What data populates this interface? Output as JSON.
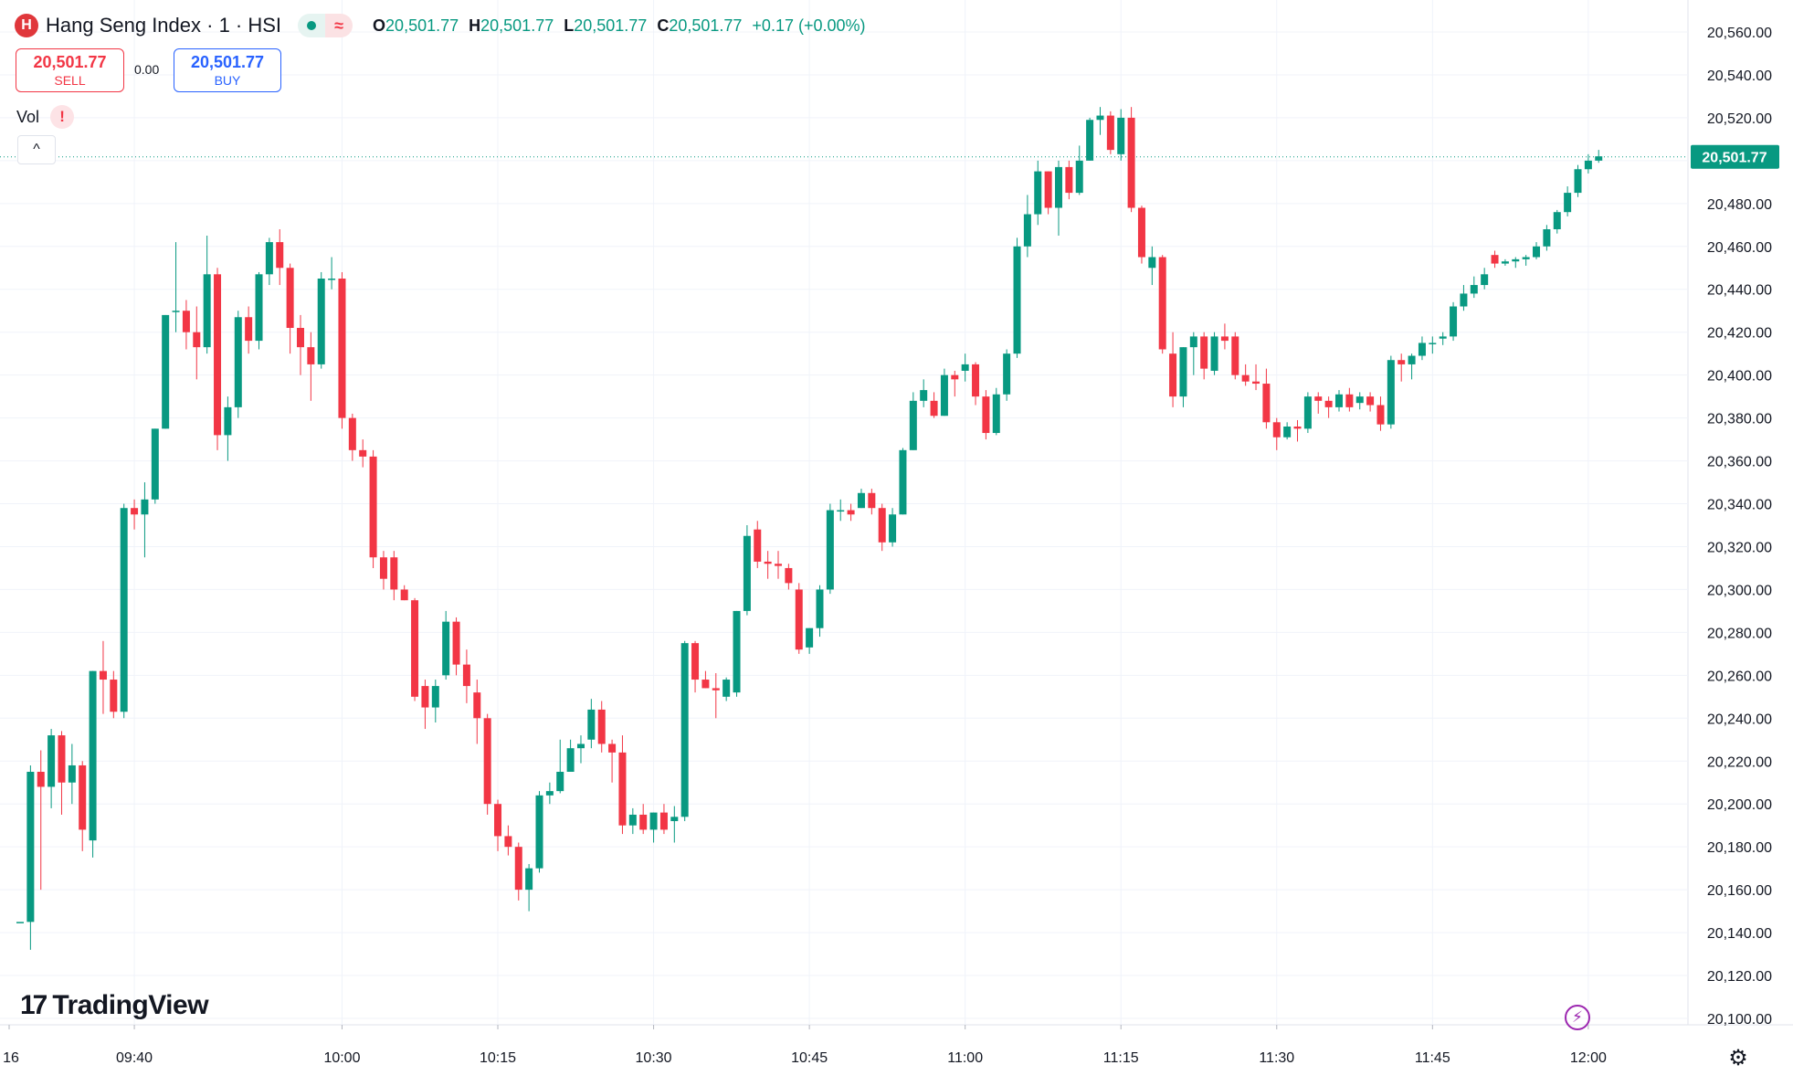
{
  "header": {
    "symbol_icon": "hang-seng-logo-icon",
    "symbol_icon_glyph": "H",
    "title": "Hang Seng Index · 1 · HSI",
    "status_wave_glyph": "≈",
    "ohlc": {
      "o_label": "O",
      "o": "20,501.77",
      "h_label": "H",
      "h": "20,501.77",
      "l_label": "L",
      "l": "20,501.77",
      "c_label": "C",
      "c": "20,501.77",
      "change": "+0.17 (+0.00%)"
    }
  },
  "trade": {
    "sell_price": "20,501.77",
    "sell_label": "SELL",
    "spread": "0.00",
    "buy_price": "20,501.77",
    "buy_label": "BUY"
  },
  "indicator": {
    "label": "Vol",
    "alert_glyph": "!",
    "collapse_glyph": "^"
  },
  "branding": {
    "logo_mark": "17",
    "logo_text": "TradingView"
  },
  "bolt_glyph": "⚡",
  "settings_glyph": "⚙",
  "colors": {
    "up": "#089981",
    "down": "#f23645",
    "grid": "#f0f3fa",
    "text": "#131722",
    "sell": "#f23645",
    "buy": "#2962ff",
    "bolt": "#9c27b0"
  },
  "chart_data": {
    "type": "candlestick",
    "interval_minutes": 1,
    "last_price": 20501.77,
    "last_price_label": "20,501.77",
    "ylim": [
      20090,
      20570
    ],
    "y_ticks": [
      20100,
      20120,
      20140,
      20160,
      20180,
      20200,
      20220,
      20240,
      20260,
      20280,
      20300,
      20320,
      20340,
      20360,
      20380,
      20400,
      20420,
      20440,
      20460,
      20480,
      20500,
      20520,
      20540,
      20560
    ],
    "y_tick_labels": [
      "20,100.00",
      "20,120.00",
      "20,140.00",
      "20,160.00",
      "20,180.00",
      "20,200.00",
      "20,220.00",
      "20,240.00",
      "20,260.00",
      "20,280.00",
      "20,300.00",
      "20,320.00",
      "20,340.00",
      "20,360.00",
      "20,380.00",
      "20,400.00",
      "20,420.00",
      "20,440.00",
      "20,460.00",
      "20,480.00",
      "20,500.00",
      "20,520.00",
      "20,540.00",
      "20,560.00"
    ],
    "x_tick_labels": [
      {
        "label": "16",
        "minute": -1
      },
      {
        "label": "09:40",
        "minute": 10
      },
      {
        "label": "10:00",
        "minute": 30
      },
      {
        "label": "10:15",
        "minute": 45
      },
      {
        "label": "10:30",
        "minute": 60
      },
      {
        "label": "10:45",
        "minute": 75
      },
      {
        "label": "11:00",
        "minute": 90
      },
      {
        "label": "11:15",
        "minute": 105
      },
      {
        "label": "11:30",
        "minute": 120
      },
      {
        "label": "11:45",
        "minute": 135
      },
      {
        "label": "12:00",
        "minute": 150
      }
    ],
    "grid": true,
    "candles": [
      [
        20145,
        20145,
        20145,
        20145
      ],
      [
        20145,
        20218,
        20132,
        20215
      ],
      [
        20215,
        20225,
        20160,
        20208
      ],
      [
        20208,
        20235,
        20198,
        20232
      ],
      [
        20232,
        20234,
        20195,
        20210
      ],
      [
        20210,
        20228,
        20200,
        20218
      ],
      [
        20218,
        20220,
        20178,
        20188
      ],
      [
        20183,
        20262,
        20175,
        20262
      ],
      [
        20262,
        20276,
        20242,
        20258
      ],
      [
        20258,
        20262,
        20240,
        20243
      ],
      [
        20243,
        20340,
        20240,
        20338
      ],
      [
        20338,
        20342,
        20328,
        20335
      ],
      [
        20335,
        20350,
        20315,
        20342
      ],
      [
        20342,
        20375,
        20340,
        20375
      ],
      [
        20375,
        20428,
        20375,
        20428
      ],
      [
        20430,
        20462,
        20420,
        20430
      ],
      [
        20430,
        20435,
        20412,
        20420
      ],
      [
        20420,
        20432,
        20398,
        20413
      ],
      [
        20413,
        20465,
        20410,
        20447
      ],
      [
        20447,
        20450,
        20365,
        20372
      ],
      [
        20372,
        20390,
        20360,
        20385
      ],
      [
        20385,
        20430,
        20380,
        20427
      ],
      [
        20427,
        20432,
        20410,
        20416
      ],
      [
        20416,
        20448,
        20412,
        20447
      ],
      [
        20447,
        20464,
        20442,
        20462
      ],
      [
        20462,
        20468,
        20442,
        20450
      ],
      [
        20450,
        20452,
        20410,
        20422
      ],
      [
        20422,
        20428,
        20400,
        20413
      ],
      [
        20413,
        20420,
        20388,
        20405
      ],
      [
        20405,
        20448,
        20403,
        20445
      ],
      [
        20445,
        20455,
        20440,
        20445
      ],
      [
        20445,
        20448,
        20375,
        20380
      ],
      [
        20380,
        20382,
        20360,
        20365
      ],
      [
        20365,
        20370,
        20357,
        20362
      ],
      [
        20362,
        20365,
        20310,
        20315
      ],
      [
        20315,
        20318,
        20300,
        20305
      ],
      [
        20315,
        20318,
        20295,
        20300
      ],
      [
        20300,
        20302,
        20295,
        20295
      ],
      [
        20295,
        20296,
        20248,
        20250
      ],
      [
        20255,
        20258,
        20235,
        20245
      ],
      [
        20245,
        20258,
        20238,
        20255
      ],
      [
        20260,
        20290,
        20258,
        20285
      ],
      [
        20285,
        20287,
        20260,
        20265
      ],
      [
        20265,
        20272,
        20247,
        20255
      ],
      [
        20252,
        20258,
        20228,
        20240
      ],
      [
        20240,
        20242,
        20195,
        20200
      ],
      [
        20200,
        20202,
        20178,
        20185
      ],
      [
        20185,
        20190,
        20176,
        20180
      ],
      [
        20180,
        20182,
        20155,
        20160
      ],
      [
        20160,
        20172,
        20150,
        20170
      ],
      [
        20170,
        20206,
        20168,
        20204
      ],
      [
        20204,
        20210,
        20200,
        20206
      ],
      [
        20206,
        20230,
        20205,
        20215
      ],
      [
        20215,
        20230,
        20215,
        20226
      ],
      [
        20226,
        20232,
        20219,
        20228
      ],
      [
        20230,
        20249,
        20226,
        20244
      ],
      [
        20244,
        20248,
        20224,
        20228
      ],
      [
        20228,
        20230,
        20210,
        20224
      ],
      [
        20224,
        20232,
        20186,
        20190
      ],
      [
        20190,
        20198,
        20186,
        20195
      ],
      [
        20195,
        20200,
        20186,
        20188
      ],
      [
        20188,
        20196,
        20182,
        20196
      ],
      [
        20196,
        20200,
        20186,
        20188
      ],
      [
        20192,
        20199,
        20182,
        20194
      ],
      [
        20194,
        20276,
        20192,
        20275
      ],
      [
        20275,
        20276,
        20252,
        20258
      ],
      [
        20258,
        20262,
        20254,
        20254
      ],
      [
        20254,
        20261,
        20240,
        20253
      ],
      [
        20250,
        20259,
        20248,
        20258
      ],
      [
        20252,
        20290,
        20250,
        20290
      ],
      [
        20290,
        20330,
        20288,
        20325
      ],
      [
        20328,
        20332,
        20310,
        20313
      ],
      [
        20313,
        20318,
        20305,
        20312
      ],
      [
        20312,
        20318,
        20305,
        20311
      ],
      [
        20310,
        20312,
        20300,
        20303
      ],
      [
        20300,
        20303,
        20270,
        20272
      ],
      [
        20273,
        20282,
        20270,
        20282
      ],
      [
        20282,
        20302,
        20278,
        20300
      ],
      [
        20300,
        20340,
        20298,
        20337
      ],
      [
        20337,
        20342,
        20332,
        20337
      ],
      [
        20337,
        20340,
        20332,
        20335
      ],
      [
        20338,
        20347,
        20338,
        20345
      ],
      [
        20345,
        20347,
        20335,
        20338
      ],
      [
        20338,
        20340,
        20318,
        20322
      ],
      [
        20322,
        20338,
        20320,
        20335
      ],
      [
        20335,
        20366,
        20335,
        20365
      ],
      [
        20365,
        20392,
        20365,
        20388
      ],
      [
        20388,
        20398,
        20385,
        20393
      ],
      [
        20388,
        20392,
        20380,
        20381
      ],
      [
        20381,
        20403,
        20381,
        20400
      ],
      [
        20400,
        20402,
        20390,
        20398
      ],
      [
        20402,
        20410,
        20397,
        20405
      ],
      [
        20405,
        20406,
        20386,
        20390
      ],
      [
        20390,
        20393,
        20370,
        20373
      ],
      [
        20373,
        20394,
        20372,
        20391
      ],
      [
        20391,
        20412,
        20388,
        20410
      ],
      [
        20410,
        20464,
        20408,
        20460
      ],
      [
        20460,
        20484,
        20455,
        20475
      ],
      [
        20475,
        20500,
        20470,
        20495
      ],
      [
        20495,
        20495,
        20475,
        20478
      ],
      [
        20478,
        20500,
        20465,
        20497
      ],
      [
        20497,
        20500,
        20482,
        20485
      ],
      [
        20485,
        20507,
        20484,
        20500
      ],
      [
        20500,
        20520,
        20500,
        20519
      ],
      [
        20519,
        20525,
        20512,
        20521
      ],
      [
        20521,
        20523,
        20503,
        20505
      ],
      [
        20503,
        20524,
        20500,
        20520
      ],
      [
        20520,
        20525,
        20476,
        20478
      ],
      [
        20478,
        20479,
        20452,
        20455
      ],
      [
        20450,
        20460,
        20442,
        20455
      ],
      [
        20455,
        20456,
        20410,
        20412
      ],
      [
        20410,
        20420,
        20385,
        20390
      ],
      [
        20390,
        20413,
        20385,
        20413
      ],
      [
        20413,
        20420,
        20400,
        20418
      ],
      [
        20418,
        20420,
        20398,
        20403
      ],
      [
        20402,
        20420,
        20400,
        20418
      ],
      [
        20418,
        20424,
        20412,
        20416
      ],
      [
        20418,
        20420,
        20398,
        20400
      ],
      [
        20400,
        20405,
        20395,
        20397
      ],
      [
        20397,
        20405,
        20393,
        20396
      ],
      [
        20396,
        20403,
        20375,
        20378
      ],
      [
        20378,
        20380,
        20365,
        20371
      ],
      [
        20371,
        20378,
        20370,
        20376
      ],
      [
        20376,
        20379,
        20369,
        20375
      ],
      [
        20375,
        20392,
        20373,
        20390
      ],
      [
        20390,
        20392,
        20382,
        20388
      ],
      [
        20388,
        20390,
        20380,
        20385
      ],
      [
        20385,
        20393,
        20383,
        20391
      ],
      [
        20391,
        20394,
        20383,
        20385
      ],
      [
        20387,
        20392,
        20384,
        20390
      ],
      [
        20390,
        20392,
        20383,
        20386
      ],
      [
        20386,
        20390,
        20374,
        20377
      ],
      [
        20377,
        20409,
        20375,
        20407
      ],
      [
        20407,
        20410,
        20397,
        20405
      ],
      [
        20405,
        20410,
        20398,
        20409
      ],
      [
        20409,
        20418,
        20407,
        20415
      ],
      [
        20415,
        20418,
        20410,
        20415
      ],
      [
        20417,
        20420,
        20414,
        20418
      ],
      [
        20418,
        20434,
        20416,
        20432
      ],
      [
        20432,
        20442,
        20430,
        20438
      ],
      [
        20438,
        20446,
        20436,
        20442
      ],
      [
        20442,
        20450,
        20440,
        20447
      ],
      [
        20456,
        20458,
        20450,
        20452
      ],
      [
        20452,
        20454,
        20451,
        20453
      ],
      [
        20453,
        20455,
        20450,
        20454
      ],
      [
        20454,
        20456,
        20451,
        20455
      ],
      [
        20455,
        20462,
        20454,
        20460
      ],
      [
        20460,
        20470,
        20458,
        20468
      ],
      [
        20468,
        20477,
        20466,
        20476
      ],
      [
        20476,
        20488,
        20474,
        20485
      ],
      [
        20485,
        20498,
        20483,
        20496
      ],
      [
        20496,
        20503,
        20494,
        20500
      ],
      [
        20500,
        20505,
        20499,
        20502
      ]
    ]
  }
}
